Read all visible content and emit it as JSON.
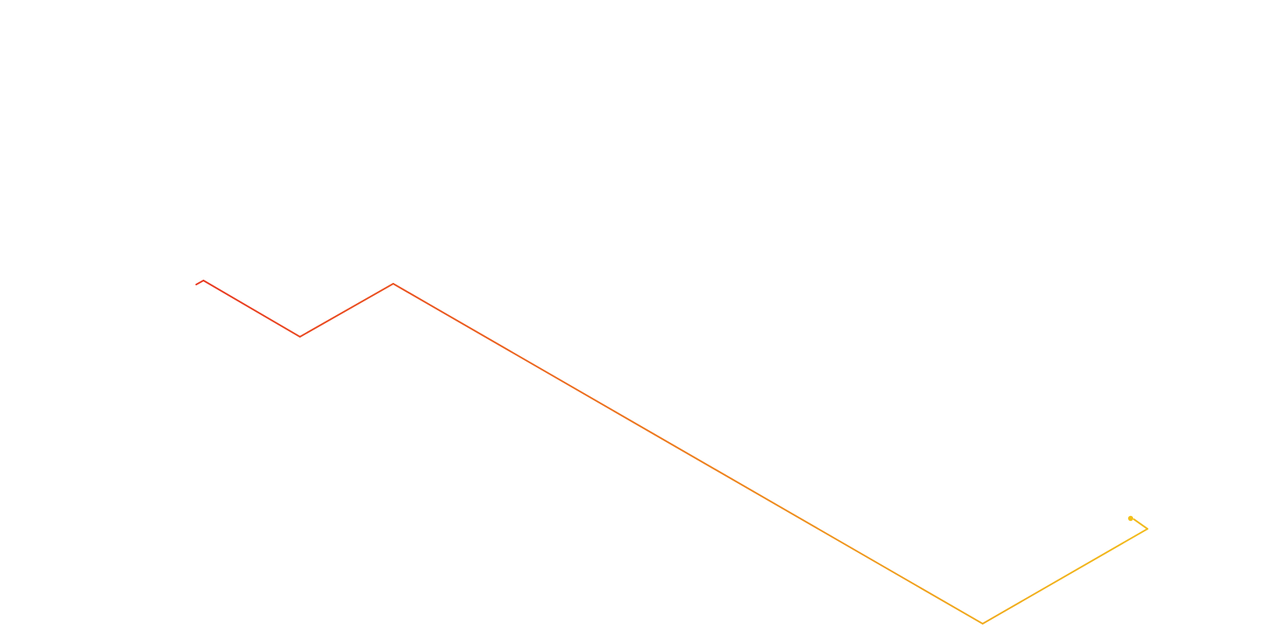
{
  "diagram": {
    "type": "isometric-path",
    "segments": 7,
    "stroke_start_color": "#e8371f",
    "stroke_end_color": "#f2c01a",
    "end_marker": "dot"
  }
}
